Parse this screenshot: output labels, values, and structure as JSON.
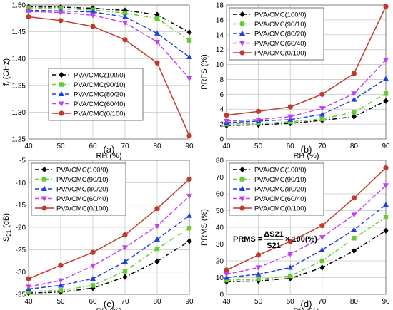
{
  "colors": {
    "black": "#000000",
    "green": "#66cc33",
    "blue": "#1f3fe0",
    "magenta": "#c040f0",
    "brown": "#c0392b"
  },
  "chart_data": [
    {
      "id": "a",
      "type": "line",
      "caption": "(a)",
      "title": "",
      "xlabel": "RH (%)",
      "ylabel": "fr (GHz)",
      "ylabel_main": "f",
      "ylabel_sub": "r",
      "ylabel_rest": " (GHz)",
      "x": [
        40,
        50,
        60,
        70,
        80,
        90
      ],
      "xlim": [
        40,
        90
      ],
      "ylim": [
        1.25,
        1.5
      ],
      "yticks": [
        1.25,
        1.3,
        1.35,
        1.4,
        1.45,
        1.5
      ],
      "ytick_labels": [
        "1.25",
        "1.30",
        "1.35",
        "1.40",
        "1.45",
        "1.50"
      ],
      "grid": true,
      "legend_position": "lower-left",
      "series": [
        {
          "name": "PVA/CMC(100/0)",
          "color": "#000000",
          "marker": "diamond",
          "dash": "dashdot",
          "values": [
            1.497,
            1.496,
            1.494,
            1.49,
            1.482,
            1.449
          ]
        },
        {
          "name": "PVA/CMC(90/10)",
          "color": "#66cc33",
          "marker": "square",
          "dash": "dashdot",
          "values": [
            1.495,
            1.493,
            1.491,
            1.485,
            1.475,
            1.434
          ]
        },
        {
          "name": "PVA/CMC(80/20)",
          "color": "#1f3fe0",
          "marker": "triangle",
          "dash": "dash",
          "values": [
            1.49,
            1.489,
            1.487,
            1.478,
            1.447,
            1.403
          ]
        },
        {
          "name": "PVA/CMC(60/40)",
          "color": "#c040f0",
          "marker": "triangle-down",
          "dash": "dash",
          "values": [
            1.488,
            1.486,
            1.481,
            1.467,
            1.431,
            1.363
          ]
        },
        {
          "name": "PVA/CMC(0/100)",
          "color": "#c0392b",
          "marker": "circle",
          "dash": "solid",
          "values": [
            1.478,
            1.471,
            1.46,
            1.435,
            1.392,
            1.256
          ]
        }
      ]
    },
    {
      "id": "b",
      "type": "line",
      "caption": "(b)",
      "title": "",
      "xlabel": "RH (%)",
      "ylabel": "PRFS (%)",
      "x": [
        40,
        50,
        60,
        70,
        80,
        90
      ],
      "xlim": [
        40,
        90
      ],
      "ylim": [
        0,
        18
      ],
      "yticks": [
        0,
        2,
        4,
        6,
        8,
        10,
        12,
        14,
        16,
        18
      ],
      "ytick_labels": [
        "0",
        "2",
        "4",
        "6",
        "8",
        "10",
        "12",
        "14",
        "16",
        "18"
      ],
      "grid": true,
      "legend_position": "top-left",
      "series": [
        {
          "name": "PVA/CMC(100/0)",
          "color": "#000000",
          "marker": "diamond",
          "dash": "dashdot",
          "values": [
            1.8,
            1.9,
            2.1,
            2.5,
            3.0,
            5.1
          ]
        },
        {
          "name": "PVA/CMC(90/10)",
          "color": "#66cc33",
          "marker": "square",
          "dash": "dashdot",
          "values": [
            2.0,
            2.1,
            2.3,
            2.7,
            3.6,
            6.1
          ]
        },
        {
          "name": "PVA/CMC(80/20)",
          "color": "#1f3fe0",
          "marker": "triangle",
          "dash": "dash",
          "values": [
            2.2,
            2.4,
            2.6,
            3.3,
            5.3,
            8.1
          ]
        },
        {
          "name": "PVA/CMC(60/40)",
          "color": "#c040f0",
          "marker": "triangle-down",
          "dash": "dash",
          "values": [
            2.4,
            2.6,
            3.0,
            4.1,
            6.1,
            10.6
          ]
        },
        {
          "name": "PVA/CMC(0/100)",
          "color": "#c0392b",
          "marker": "circle",
          "dash": "solid",
          "values": [
            3.2,
            3.7,
            4.3,
            6.0,
            8.8,
            17.8
          ]
        }
      ]
    },
    {
      "id": "c",
      "type": "line",
      "caption": "(c)",
      "title": "",
      "xlabel": "RH (%)",
      "ylabel": "S21 (dB)",
      "ylabel_main": "S",
      "ylabel_sub": "21",
      "ylabel_rest": " (dB)",
      "x": [
        40,
        50,
        60,
        70,
        80,
        90
      ],
      "xlim": [
        40,
        90
      ],
      "ylim": [
        -35,
        -5
      ],
      "yticks": [
        -35,
        -30,
        -25,
        -20,
        -15,
        -10,
        -5
      ],
      "ytick_labels": [
        "-35",
        "-30",
        "-25",
        "-20",
        "-15",
        "-10",
        "-5"
      ],
      "grid": true,
      "legend_position": "top-left",
      "series": [
        {
          "name": "PVA/CMC(100/0)",
          "color": "#000000",
          "marker": "diamond",
          "dash": "dashdot",
          "values": [
            -34.7,
            -34.5,
            -33.6,
            -31.1,
            -27.6,
            -23.1
          ]
        },
        {
          "name": "PVA/CMC(90/10)",
          "color": "#66cc33",
          "marker": "square",
          "dash": "dashdot",
          "values": [
            -34.4,
            -34.1,
            -33.0,
            -29.8,
            -24.8,
            -20.2
          ]
        },
        {
          "name": "PVA/CMC(80/20)",
          "color": "#1f3fe0",
          "marker": "triangle",
          "dash": "dash",
          "values": [
            -33.8,
            -33.0,
            -31.5,
            -27.7,
            -22.7,
            -17.4
          ]
        },
        {
          "name": "PVA/CMC(60/40)",
          "color": "#c040f0",
          "marker": "triangle-down",
          "dash": "dash",
          "values": [
            -33.3,
            -31.9,
            -28.6,
            -24.5,
            -19.7,
            -13.0
          ]
        },
        {
          "name": "PVA/CMC(0/100)",
          "color": "#c0392b",
          "marker": "circle",
          "dash": "solid",
          "values": [
            -31.5,
            -28.5,
            -25.6,
            -21.7,
            -15.8,
            -9.2
          ]
        }
      ]
    },
    {
      "id": "d",
      "type": "line",
      "caption": "(d)",
      "title": "",
      "xlabel": "RH (%)",
      "ylabel": "PRMS (%)",
      "x": [
        40,
        50,
        60,
        70,
        80,
        90
      ],
      "xlim": [
        40,
        90
      ],
      "ylim": [
        0,
        80
      ],
      "yticks": [
        0,
        10,
        20,
        30,
        40,
        50,
        60,
        70,
        80
      ],
      "ytick_labels": [
        "0",
        "10",
        "20",
        "30",
        "40",
        "50",
        "60",
        "70",
        "80"
      ],
      "grid": true,
      "legend_position": "top-left",
      "annotation": {
        "prefix": "PRMS = ",
        "numerator": "ΔS21",
        "denominator": "S21",
        "suffix": "× 100(%)"
      },
      "series": [
        {
          "name": "PVA/CMC(100/0)",
          "color": "#000000",
          "marker": "diamond",
          "dash": "dashdot",
          "values": [
            7.5,
            8.0,
            9.5,
            16.0,
            26.0,
            38.0
          ]
        },
        {
          "name": "PVA/CMC(90/10)",
          "color": "#66cc33",
          "marker": "square",
          "dash": "dashdot",
          "values": [
            8.5,
            9.0,
            11.0,
            20.0,
            33.5,
            46.0
          ]
        },
        {
          "name": "PVA/CMC(80/20)",
          "color": "#1f3fe0",
          "marker": "triangle",
          "dash": "dash",
          "values": [
            10.0,
            12.0,
            16.0,
            26.5,
            38.5,
            53.5
          ]
        },
        {
          "name": "PVA/CMC(60/40)",
          "color": "#c040f0",
          "marker": "triangle-down",
          "dash": "dash",
          "values": [
            12.0,
            16.0,
            24.0,
            34.0,
            47.5,
            65.0
          ]
        },
        {
          "name": "PVA/CMC(0/100)",
          "color": "#c0392b",
          "marker": "circle",
          "dash": "solid",
          "values": [
            14.5,
            23.5,
            31.5,
            41.0,
            57.5,
            75.5
          ]
        }
      ]
    }
  ]
}
